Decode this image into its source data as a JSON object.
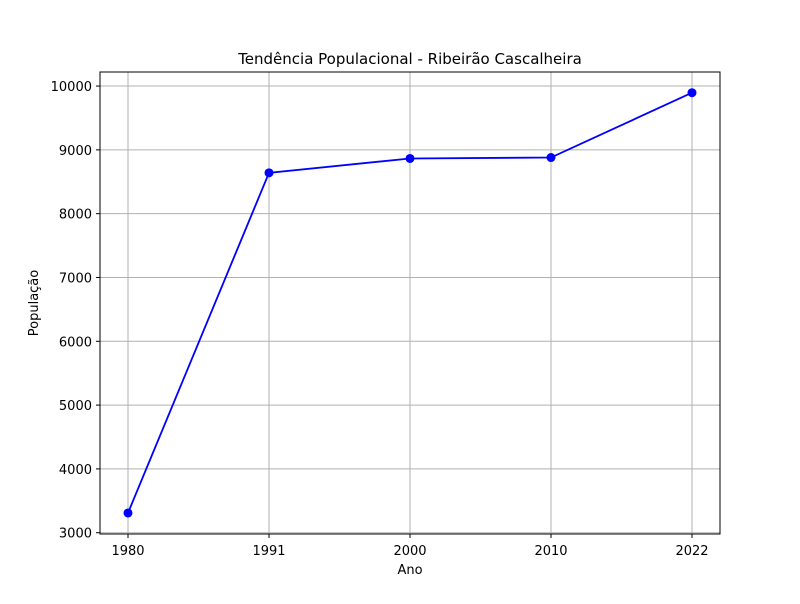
{
  "chart_data": {
    "type": "line",
    "title": "Tendência Populacional - Ribeirão Cascalheira",
    "xlabel": "Ano",
    "ylabel": "População",
    "categories": [
      "1980",
      "1991",
      "2000",
      "2010",
      "2022"
    ],
    "series": [
      {
        "values": [
          3310,
          8640,
          8865,
          8880,
          9895
        ]
      }
    ],
    "ylim": [
      2980,
      10220
    ],
    "yticks": [
      3000,
      4000,
      5000,
      6000,
      7000,
      8000,
      9000,
      10000
    ],
    "grid": true,
    "colors": {
      "line": "#0000ff",
      "marker": "#0000ff",
      "grid": "#b0b0b0",
      "axes": "#000000"
    }
  }
}
